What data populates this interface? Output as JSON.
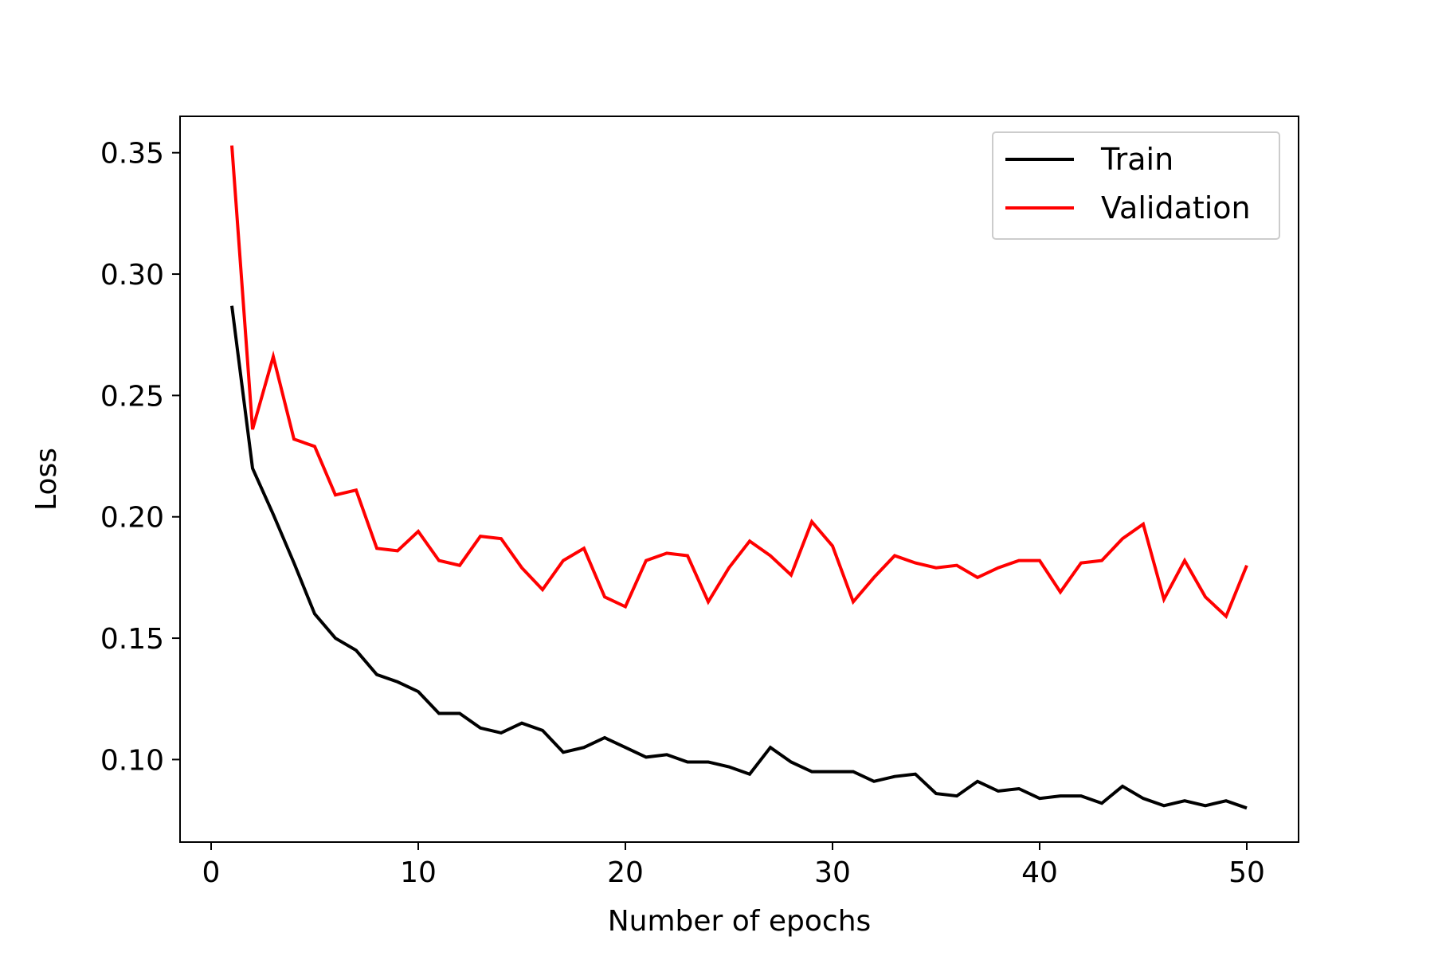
{
  "chart_data": {
    "type": "line",
    "title": "",
    "xlabel": "Number of epochs",
    "ylabel": "Loss",
    "xlim": [
      -1.5,
      52.5
    ],
    "ylim": [
      0.066,
      0.365
    ],
    "xticks": [
      0,
      10,
      20,
      30,
      40,
      50
    ],
    "xtick_labels": [
      "0",
      "10",
      "20",
      "30",
      "40",
      "50"
    ],
    "yticks": [
      0.1,
      0.15,
      0.2,
      0.25,
      0.3,
      0.35
    ],
    "ytick_labels": [
      "0.10",
      "0.15",
      "0.20",
      "0.25",
      "0.30",
      "0.35"
    ],
    "grid": false,
    "legend": "top-right",
    "x": [
      1,
      2,
      3,
      4,
      5,
      6,
      7,
      8,
      9,
      10,
      11,
      12,
      13,
      14,
      15,
      16,
      17,
      18,
      19,
      20,
      21,
      22,
      23,
      24,
      25,
      26,
      27,
      28,
      29,
      30,
      31,
      32,
      33,
      34,
      35,
      36,
      37,
      38,
      39,
      40,
      41,
      42,
      43,
      44,
      45,
      46,
      47,
      48,
      49,
      50
    ],
    "series": [
      {
        "name": "Train",
        "color": "#000000",
        "values": [
          0.287,
          0.22,
          0.201,
          0.181,
          0.16,
          0.15,
          0.145,
          0.135,
          0.132,
          0.128,
          0.119,
          0.119,
          0.113,
          0.111,
          0.115,
          0.112,
          0.103,
          0.105,
          0.109,
          0.105,
          0.101,
          0.102,
          0.099,
          0.099,
          0.097,
          0.094,
          0.105,
          0.099,
          0.095,
          0.095,
          0.095,
          0.091,
          0.093,
          0.094,
          0.086,
          0.085,
          0.091,
          0.087,
          0.088,
          0.084,
          0.085,
          0.085,
          0.082,
          0.089,
          0.084,
          0.081,
          0.083,
          0.081,
          0.083,
          0.08
        ]
      },
      {
        "name": "Validation",
        "color": "#ff0000",
        "values": [
          0.353,
          0.236,
          0.266,
          0.232,
          0.229,
          0.209,
          0.211,
          0.187,
          0.186,
          0.194,
          0.182,
          0.18,
          0.192,
          0.191,
          0.179,
          0.17,
          0.182,
          0.187,
          0.167,
          0.163,
          0.182,
          0.185,
          0.184,
          0.165,
          0.179,
          0.19,
          0.184,
          0.176,
          0.198,
          0.188,
          0.165,
          0.175,
          0.184,
          0.181,
          0.179,
          0.18,
          0.175,
          0.179,
          0.182,
          0.182,
          0.169,
          0.181,
          0.182,
          0.191,
          0.197,
          0.166,
          0.182,
          0.167,
          0.159,
          0.18
        ]
      }
    ]
  }
}
